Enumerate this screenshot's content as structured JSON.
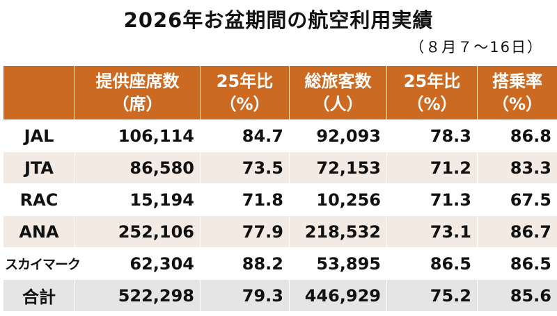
{
  "title": "2026年お盆期間の航空利用実績",
  "period": "（８月７～16日）",
  "chart_data": {
    "type": "table",
    "columns": [
      {
        "label": "提供座席数",
        "unit": "（席）"
      },
      {
        "label": "25年比",
        "unit": "（%）"
      },
      {
        "label": "総旅客数",
        "unit": "（人）"
      },
      {
        "label": "25年比",
        "unit": "（%）"
      },
      {
        "label": "搭乗率",
        "unit": "（%）"
      }
    ],
    "rows": [
      {
        "name": "JAL",
        "values": [
          "106,114",
          "84.7",
          "92,093",
          "78.3",
          "86.8"
        ]
      },
      {
        "name": "JTA",
        "values": [
          "86,580",
          "73.5",
          "72,153",
          "71.2",
          "83.3"
        ]
      },
      {
        "name": "RAC",
        "values": [
          "15,194",
          "71.8",
          "10,256",
          "71.3",
          "67.5"
        ]
      },
      {
        "name": "ANA",
        "values": [
          "252,106",
          "77.9",
          "218,532",
          "73.1",
          "86.7"
        ]
      },
      {
        "name": "スカイマーク",
        "values": [
          "62,304",
          "88.2",
          "53,895",
          "86.5",
          "86.5"
        ]
      },
      {
        "name": "合計",
        "values": [
          "522,298",
          "79.3",
          "446,929",
          "75.2",
          "85.6"
        ]
      }
    ]
  }
}
